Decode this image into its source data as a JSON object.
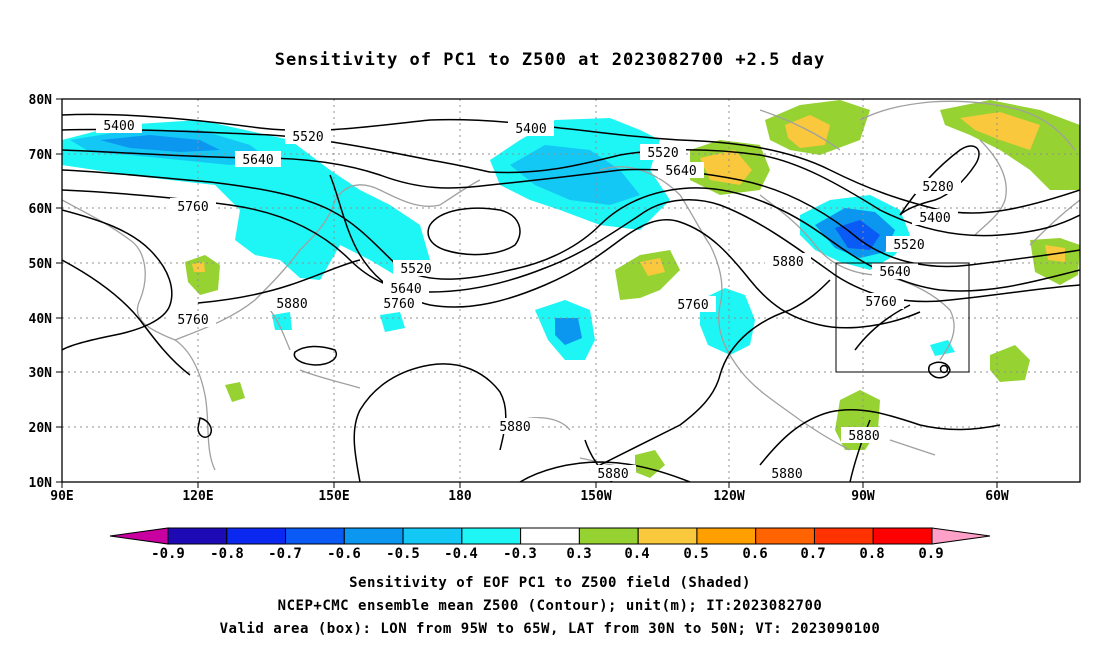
{
  "title": "Sensitivity of PC1 to Z500 at 2023082700 +2.5 day",
  "lat_labels": [
    "80N",
    "70N",
    "60N",
    "50N",
    "40N",
    "30N",
    "20N",
    "10N"
  ],
  "lon_labels": [
    "90E",
    "120E",
    "150E",
    "180",
    "150W",
    "120W",
    "90W",
    "60W"
  ],
  "contour_labels": [
    "5400",
    "5520",
    "5400",
    "5640",
    "5760",
    "5520",
    "5640",
    "5280",
    "5400",
    "5520",
    "5640",
    "5760",
    "5880",
    "5520",
    "5640",
    "5760",
    "5880",
    "5760",
    "5760",
    "5880",
    "5880",
    "5880",
    "5880"
  ],
  "colorbar": {
    "labels": [
      "-0.9",
      "-0.8",
      "-0.7",
      "-0.6",
      "-0.5",
      "-0.4",
      "-0.3",
      "0.3",
      "0.4",
      "0.5",
      "0.6",
      "0.7",
      "0.8",
      "0.9"
    ],
    "colors": [
      "#1e0ab4",
      "#0a28f0",
      "#0a5af5",
      "#0b96f0",
      "#14c8f5",
      "#1ef5f5",
      "#ffffff",
      "#96d232",
      "#fac83c",
      "#ffa000",
      "#ff6400",
      "#ff3200",
      "#ff0000"
    ],
    "low_end_color": "#c800a0",
    "high_end_color": "#ffa0c8"
  },
  "caption": {
    "line1": "Sensitivity of EOF PC1 to Z500 field (Shaded)",
    "line2": "NCEP+CMC ensemble mean Z500 (Contour); unit(m); IT:2023082700",
    "line3": "Valid area (box): LON from 95W to 65W, LAT from 30N to 50N; VT: 2023090100"
  },
  "valid_box": {
    "lon_min": -95,
    "lon_max": -65,
    "lat_min": 30,
    "lat_max": 50
  }
}
